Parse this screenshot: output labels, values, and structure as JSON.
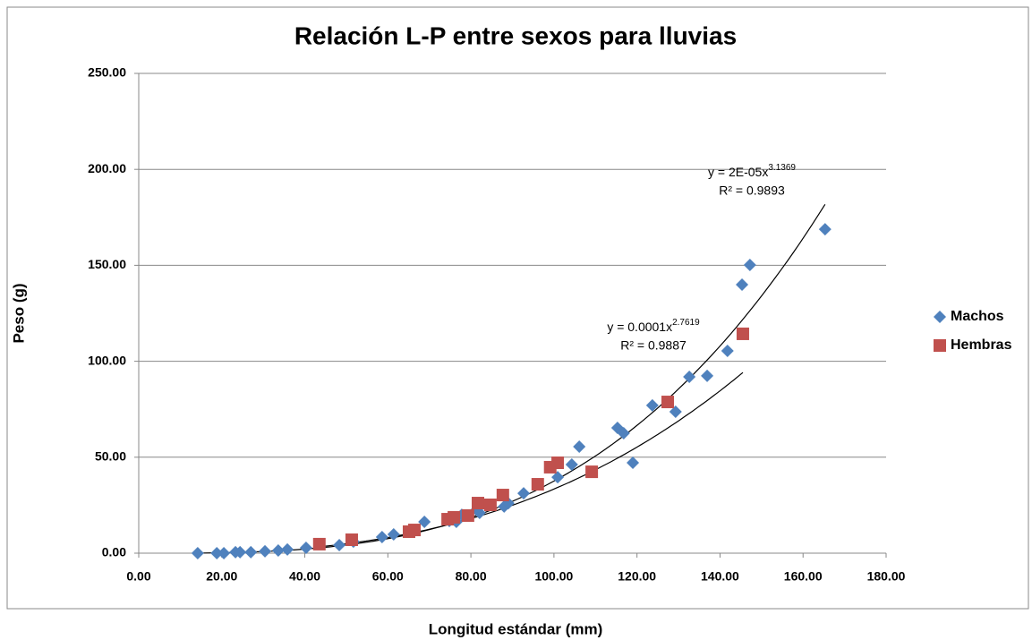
{
  "chart_data": {
    "type": "scatter",
    "title": "Relación L-P entre sexos para lluvias",
    "x_label": "Longitud estándar (mm)",
    "y_label": "Peso (g)",
    "xlim": [
      0,
      180
    ],
    "ylim": [
      0,
      250
    ],
    "xticks": [
      {
        "value": 0,
        "label": "0.00"
      },
      {
        "value": 20,
        "label": "20.00"
      },
      {
        "value": 40,
        "label": "40.00"
      },
      {
        "value": 60,
        "label": "60.00"
      },
      {
        "value": 80,
        "label": "80.00"
      },
      {
        "value": 100,
        "label": "100.00"
      },
      {
        "value": 120,
        "label": "120.00"
      },
      {
        "value": 140,
        "label": "140.00"
      },
      {
        "value": 160,
        "label": "160.00"
      },
      {
        "value": 180,
        "label": "180.00"
      }
    ],
    "yticks": [
      {
        "value": 0,
        "label": "0.00"
      },
      {
        "value": 50,
        "label": "50.00"
      },
      {
        "value": 100,
        "label": "100.00"
      },
      {
        "value": 150,
        "label": "150.00"
      },
      {
        "value": 200,
        "label": "200.00"
      },
      {
        "value": 250,
        "label": "250.00"
      }
    ],
    "grid": true,
    "legend": "right",
    "series": [
      {
        "name": "Machos",
        "color": "#4f81bd",
        "marker": "diamond",
        "x": [
          14.2,
          18.8,
          20.5,
          23.3,
          24.4,
          27,
          30.4,
          33.6,
          35.8,
          40.3,
          48.3,
          51.7,
          58.6,
          61.4,
          66.2,
          68.8,
          74.8,
          76.5,
          77.8,
          82.1,
          81.5,
          88,
          89,
          92.7,
          100.9,
          104.3,
          106.1,
          115.3,
          116.8,
          119,
          123.7,
          129.3,
          132.6,
          136.9,
          141.8,
          145.3,
          147.2,
          165.3
        ],
        "values": [
          0,
          0,
          0,
          0.5,
          0.5,
          0.5,
          1,
          1.4,
          1.9,
          2.8,
          4.2,
          6,
          8.4,
          9.8,
          11.7,
          16.3,
          16.8,
          16.3,
          20,
          21,
          22.9,
          24.3,
          26,
          31.2,
          39.6,
          46.2,
          55.5,
          65.3,
          62.5,
          47.1,
          77,
          73.7,
          91.9,
          92.4,
          105.4,
          139.9,
          150.2,
          168.8
        ]
      },
      {
        "name": "Hembras",
        "color": "#c0504d",
        "marker": "square",
        "x": [
          43.5,
          51.3,
          65.1,
          66.4,
          74.4,
          75.9,
          79.3,
          81.7,
          84.7,
          87.7,
          96.1,
          99.1,
          100.9,
          109.1,
          127.4,
          145.5
        ],
        "values": [
          4.7,
          7,
          11.2,
          12.1,
          17.7,
          18.7,
          19.6,
          26.1,
          25.2,
          30.3,
          35.9,
          44.8,
          47.1,
          42.4,
          78.8,
          114.3
        ]
      }
    ],
    "trendlines": [
      {
        "equation": "y = 2E-05x",
        "exponent": "3.1369",
        "r_squared": "R² = 0.9893"
      },
      {
        "equation": "y = 0.0001x",
        "exponent": "2.7619",
        "r_squared": "R² = 0.9887"
      }
    ]
  }
}
